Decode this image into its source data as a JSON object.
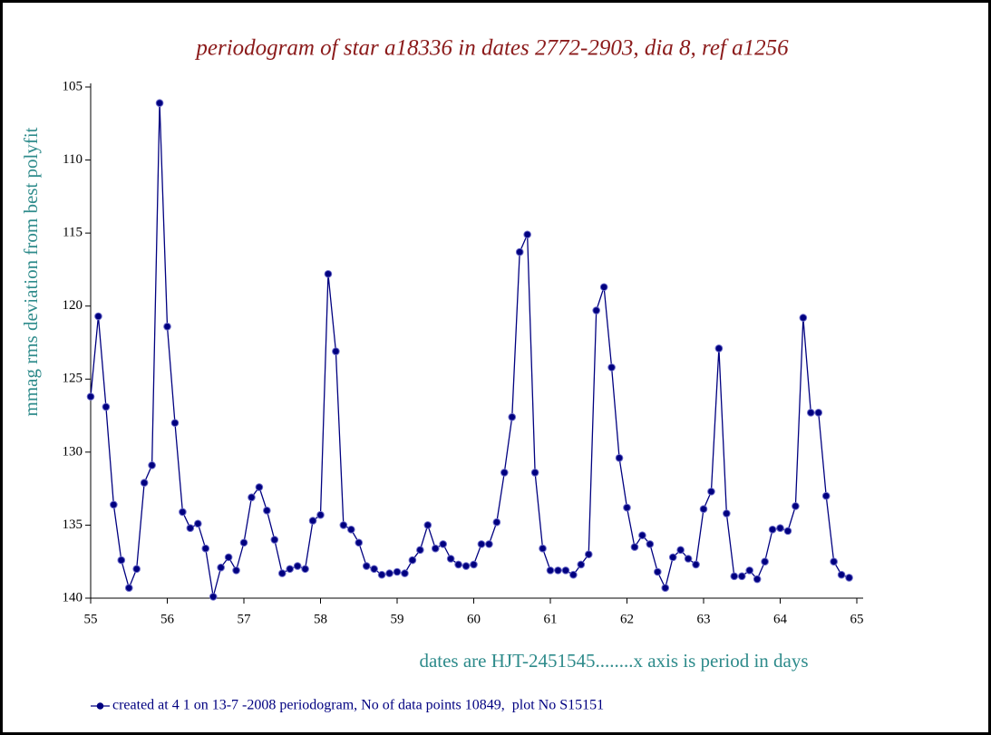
{
  "chart_data": {
    "type": "line",
    "title": "periodogram of star a18336 in dates 2772-2903, dia 8, ref a1256",
    "y_label": "mmag rms deviation from best polyfit",
    "x_label": "dates are HJT-2451545........x axis is period in days",
    "x": [
      55.0,
      55.1,
      55.2,
      55.3,
      55.4,
      55.5,
      55.6,
      55.7,
      55.8,
      55.9,
      56.0,
      56.1,
      56.2,
      56.3,
      56.4,
      56.5,
      56.6,
      56.7,
      56.8,
      56.9,
      57.0,
      57.1,
      57.2,
      57.3,
      57.4,
      57.5,
      57.6,
      57.7,
      57.8,
      57.9,
      58.0,
      58.1,
      58.2,
      58.3,
      58.4,
      58.5,
      58.6,
      58.7,
      58.8,
      58.9,
      59.0,
      59.1,
      59.2,
      59.3,
      59.4,
      59.5,
      59.6,
      59.7,
      59.8,
      59.9,
      60.0,
      60.1,
      60.2,
      60.3,
      60.4,
      60.5,
      60.6,
      60.7,
      60.8,
      60.9,
      61.0,
      61.1,
      61.2,
      61.3,
      61.4,
      61.5,
      61.6,
      61.7,
      61.8,
      61.9,
      62.0,
      62.1,
      62.2,
      62.3,
      62.4,
      62.5,
      62.6,
      62.7,
      62.8,
      62.9,
      63.0,
      63.1,
      63.2,
      63.3,
      63.4,
      63.5,
      63.6,
      63.7,
      63.8,
      63.9,
      64.0,
      64.1,
      64.2,
      64.3,
      64.4,
      64.5,
      64.6,
      64.7,
      64.8,
      64.9
    ],
    "series": [
      {
        "name": "created at 4 1 on 13-7 -2008 periodogram, No of data points 10849,  plot No S15151",
        "color": "#000080",
        "values": [
          126.2,
          120.7,
          126.9,
          133.6,
          137.4,
          139.3,
          138.0,
          132.1,
          130.9,
          106.1,
          121.4,
          128.0,
          134.1,
          135.2,
          134.9,
          136.6,
          139.9,
          137.9,
          137.2,
          138.1,
          136.2,
          133.1,
          132.4,
          134.0,
          136.0,
          138.3,
          138.0,
          137.8,
          138.0,
          134.7,
          134.3,
          117.8,
          123.1,
          135.0,
          135.3,
          136.2,
          137.8,
          138.0,
          138.4,
          138.3,
          138.2,
          138.3,
          137.4,
          136.7,
          135.0,
          136.6,
          136.3,
          137.3,
          137.7,
          137.8,
          137.7,
          136.3,
          136.3,
          134.8,
          131.4,
          127.6,
          116.3,
          115.1,
          131.4,
          136.6,
          138.1,
          138.1,
          138.1,
          138.4,
          137.7,
          137.0,
          120.3,
          118.7,
          124.2,
          130.4,
          133.8,
          136.5,
          135.7,
          136.3,
          138.2,
          139.3,
          137.2,
          136.7,
          137.3,
          137.7,
          133.9,
          132.7,
          122.9,
          134.2,
          138.5,
          138.5,
          138.1,
          138.7,
          137.5,
          135.3,
          135.2,
          135.4,
          133.7,
          120.8,
          127.3,
          127.3,
          133.0,
          137.5,
          138.4,
          138.6
        ]
      }
    ],
    "xlim": [
      55,
      65
    ],
    "xticks": [
      55,
      56,
      57,
      58,
      59,
      60,
      61,
      62,
      63,
      64,
      65
    ],
    "ylim": [
      105,
      140
    ],
    "yticks": [
      105,
      110,
      115,
      120,
      125,
      130,
      135,
      140
    ],
    "y_inverted": true,
    "grid": false,
    "legend": "bottom"
  }
}
